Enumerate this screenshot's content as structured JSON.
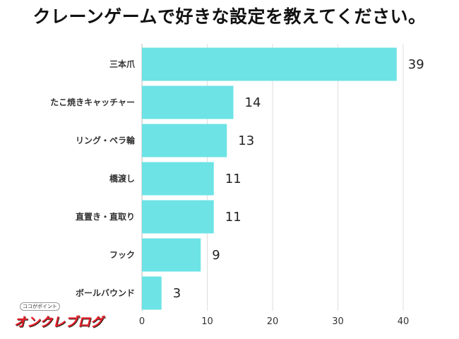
{
  "title": "クレーンゲームで好きな設定を教えてください。",
  "logo": {
    "brand": "オンクレブログ",
    "tagline": "ココがポイント"
  },
  "colors": {
    "bar": "#6de3e6",
    "grid": "#dddddd",
    "axis": "#bbbbbb"
  },
  "chart_data": {
    "type": "bar",
    "orientation": "horizontal",
    "title": "クレーンゲームで好きな設定を教えてください。",
    "categories": [
      "三本爪",
      "たこ焼きキャッチャー",
      "リング・ペラ輪",
      "橋渡し",
      "直置き・直取り",
      "フック",
      "ボールバウンド"
    ],
    "values": [
      39,
      14,
      13,
      11,
      11,
      9,
      3
    ],
    "xlim": [
      0,
      40
    ],
    "xticks": [
      0,
      10,
      20,
      30,
      40
    ],
    "grid": true,
    "xlabel": "",
    "ylabel": ""
  }
}
